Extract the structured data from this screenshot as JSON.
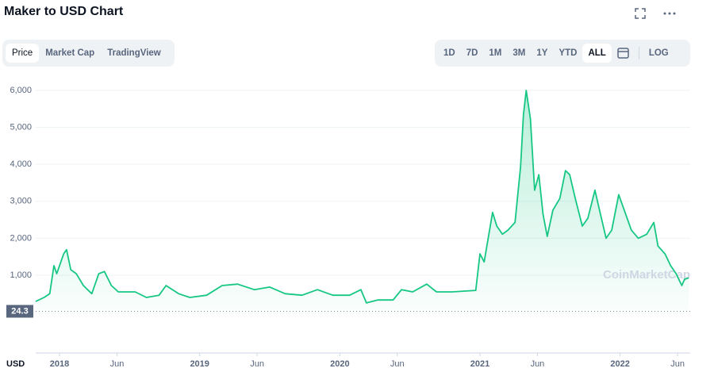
{
  "header": {
    "title": "Maker to USD Chart"
  },
  "tabs": [
    "Price",
    "Market Cap",
    "TradingView"
  ],
  "ranges": [
    "1D",
    "7D",
    "1M",
    "3M",
    "1Y",
    "YTD",
    "ALL"
  ],
  "log_button": "LOG",
  "chart_data": {
    "type": "line",
    "currency": "USD",
    "watermark": "CoinMarketCap",
    "color": "#16c784",
    "x": [
      2017.83,
      2017.89,
      2017.93,
      2017.96,
      2017.98,
      2018.03,
      2018.05,
      2018.08,
      2018.12,
      2018.17,
      2018.23,
      2018.28,
      2018.32,
      2018.37,
      2018.42,
      2018.54,
      2018.62,
      2018.71,
      2018.76,
      2018.85,
      2018.93,
      2019.05,
      2019.16,
      2019.27,
      2019.39,
      2019.5,
      2019.61,
      2019.73,
      2019.84,
      2019.95,
      2020.07,
      2020.15,
      2020.19,
      2020.27,
      2020.38,
      2020.44,
      2020.52,
      2020.62,
      2020.69,
      2020.8,
      2020.97,
      2021.0,
      2021.03,
      2021.09,
      2021.12,
      2021.16,
      2021.2,
      2021.25,
      2021.29,
      2021.31,
      2021.33,
      2021.36,
      2021.39,
      2021.42,
      2021.45,
      2021.48,
      2021.52,
      2021.57,
      2021.61,
      2021.64,
      2021.68,
      2021.73,
      2021.77,
      2021.82,
      2021.86,
      2021.9,
      2021.94,
      2021.99,
      2022.04,
      2022.08,
      2022.13,
      2022.19,
      2022.24,
      2022.27,
      2022.32,
      2022.36,
      2022.4,
      2022.44,
      2022.46,
      2022.49
    ],
    "values": [
      290,
      400,
      500,
      1260,
      1040,
      1580,
      1690,
      1150,
      1040,
      720,
      500,
      1040,
      1100,
      720,
      550,
      550,
      400,
      460,
      720,
      500,
      400,
      460,
      720,
      760,
      610,
      680,
      500,
      460,
      610,
      460,
      460,
      610,
      250,
      330,
      330,
      610,
      550,
      760,
      550,
      550,
      590,
      1580,
      1360,
      2700,
      2330,
      2110,
      2220,
      2430,
      3940,
      5340,
      6000,
      5230,
      3300,
      3720,
      2650,
      2050,
      2760,
      3080,
      3830,
      3720,
      3080,
      2330,
      2540,
      3300,
      2650,
      2000,
      2220,
      3180,
      2650,
      2220,
      2000,
      2110,
      2430,
      1790,
      1580,
      1260,
      1040,
      720,
      890,
      930
    ],
    "reference_line": 24.3,
    "xlim": [
      2017.83,
      2022.5
    ],
    "ylim": [
      0,
      6300
    ],
    "yticks": [
      {
        "value": 1000,
        "label": "1,000"
      },
      {
        "value": 2000,
        "label": "2,000"
      },
      {
        "value": 3000,
        "label": "3,000"
      },
      {
        "value": 4000,
        "label": "4,000"
      },
      {
        "value": 5000,
        "label": "5,000"
      },
      {
        "value": 6000,
        "label": "6,000"
      }
    ],
    "xticks": [
      {
        "value": 2018,
        "label": "2018"
      },
      {
        "value": 2018.41,
        "label": "Jun"
      },
      {
        "value": 2019,
        "label": "2019"
      },
      {
        "value": 2019.41,
        "label": "Jun"
      },
      {
        "value": 2020,
        "label": "2020"
      },
      {
        "value": 2020.41,
        "label": "Jun"
      },
      {
        "value": 2021,
        "label": "2021"
      },
      {
        "value": 2021.41,
        "label": "Jun"
      },
      {
        "value": 2022,
        "label": "2022"
      },
      {
        "value": 2022.41,
        "label": "Jun"
      }
    ],
    "grid": true
  }
}
